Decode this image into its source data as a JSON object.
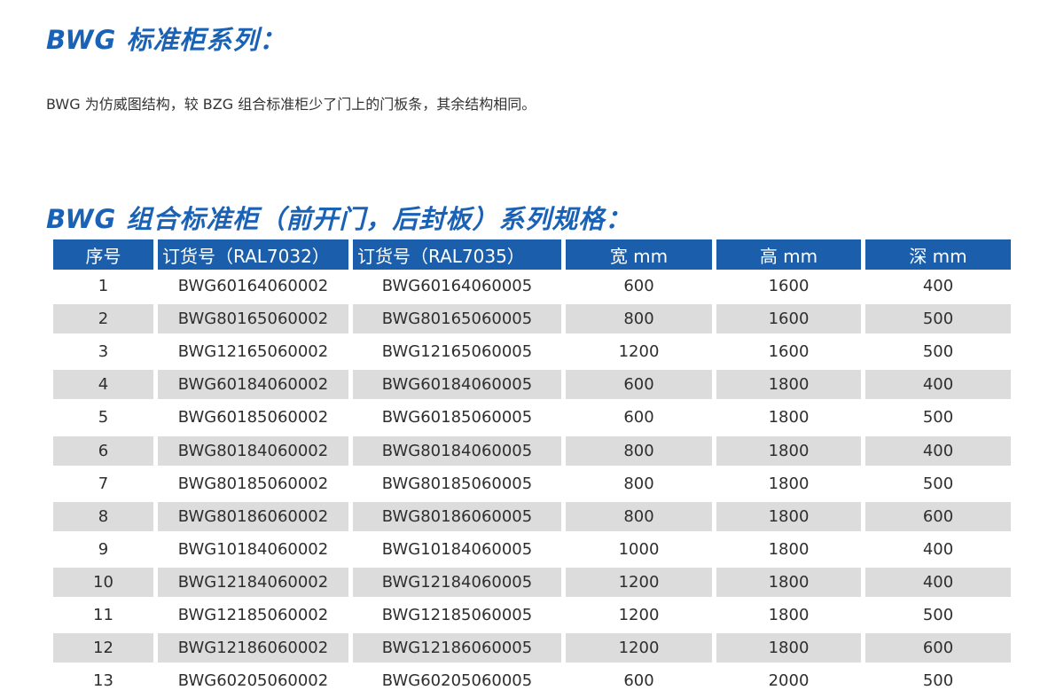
{
  "title": "BWG 标准柜系列：",
  "description": "BWG 为仿威图结构，较 BZG 组合标准柜少了门上的门板条，其余结构相同。",
  "table_title": "BWG 组合标准柜（前开门，后封板）系列规格：",
  "colors": {
    "accent": "#1a62b5",
    "header_bg": "#1b5eab",
    "stripe": "#dcdcdc"
  },
  "table": {
    "headers": [
      "序号",
      "订货号（RAL7032）",
      "订货号（RAL7035）",
      "宽 mm",
      "高 mm",
      "深 mm"
    ],
    "rows": [
      [
        "1",
        "BWG60164060002",
        "BWG60164060005",
        "600",
        "1600",
        "400"
      ],
      [
        "2",
        "BWG80165060002",
        "BWG80165060005",
        "800",
        "1600",
        "500"
      ],
      [
        "3",
        "BWG12165060002",
        "BWG12165060005",
        "1200",
        "1600",
        "500"
      ],
      [
        "4",
        "BWG60184060002",
        "BWG60184060005",
        "600",
        "1800",
        "400"
      ],
      [
        "5",
        "BWG60185060002",
        "BWG60185060005",
        "600",
        "1800",
        "500"
      ],
      [
        "6",
        "BWG80184060002",
        "BWG80184060005",
        "800",
        "1800",
        "400"
      ],
      [
        "7",
        "BWG80185060002",
        "BWG80185060005",
        "800",
        "1800",
        "500"
      ],
      [
        "8",
        "BWG80186060002",
        "BWG80186060005",
        "800",
        "1800",
        "600"
      ],
      [
        "9",
        "BWG10184060002",
        "BWG10184060005",
        "1000",
        "1800",
        "400"
      ],
      [
        "10",
        "BWG12184060002",
        "BWG12184060005",
        "1200",
        "1800",
        "400"
      ],
      [
        "11",
        "BWG12185060002",
        "BWG12185060005",
        "1200",
        "1800",
        "500"
      ],
      [
        "12",
        "BWG12186060002",
        "BWG12186060005",
        "1200",
        "1800",
        "600"
      ],
      [
        "13",
        "BWG60205060002",
        "BWG60205060005",
        "600",
        "2000",
        "500"
      ]
    ]
  }
}
